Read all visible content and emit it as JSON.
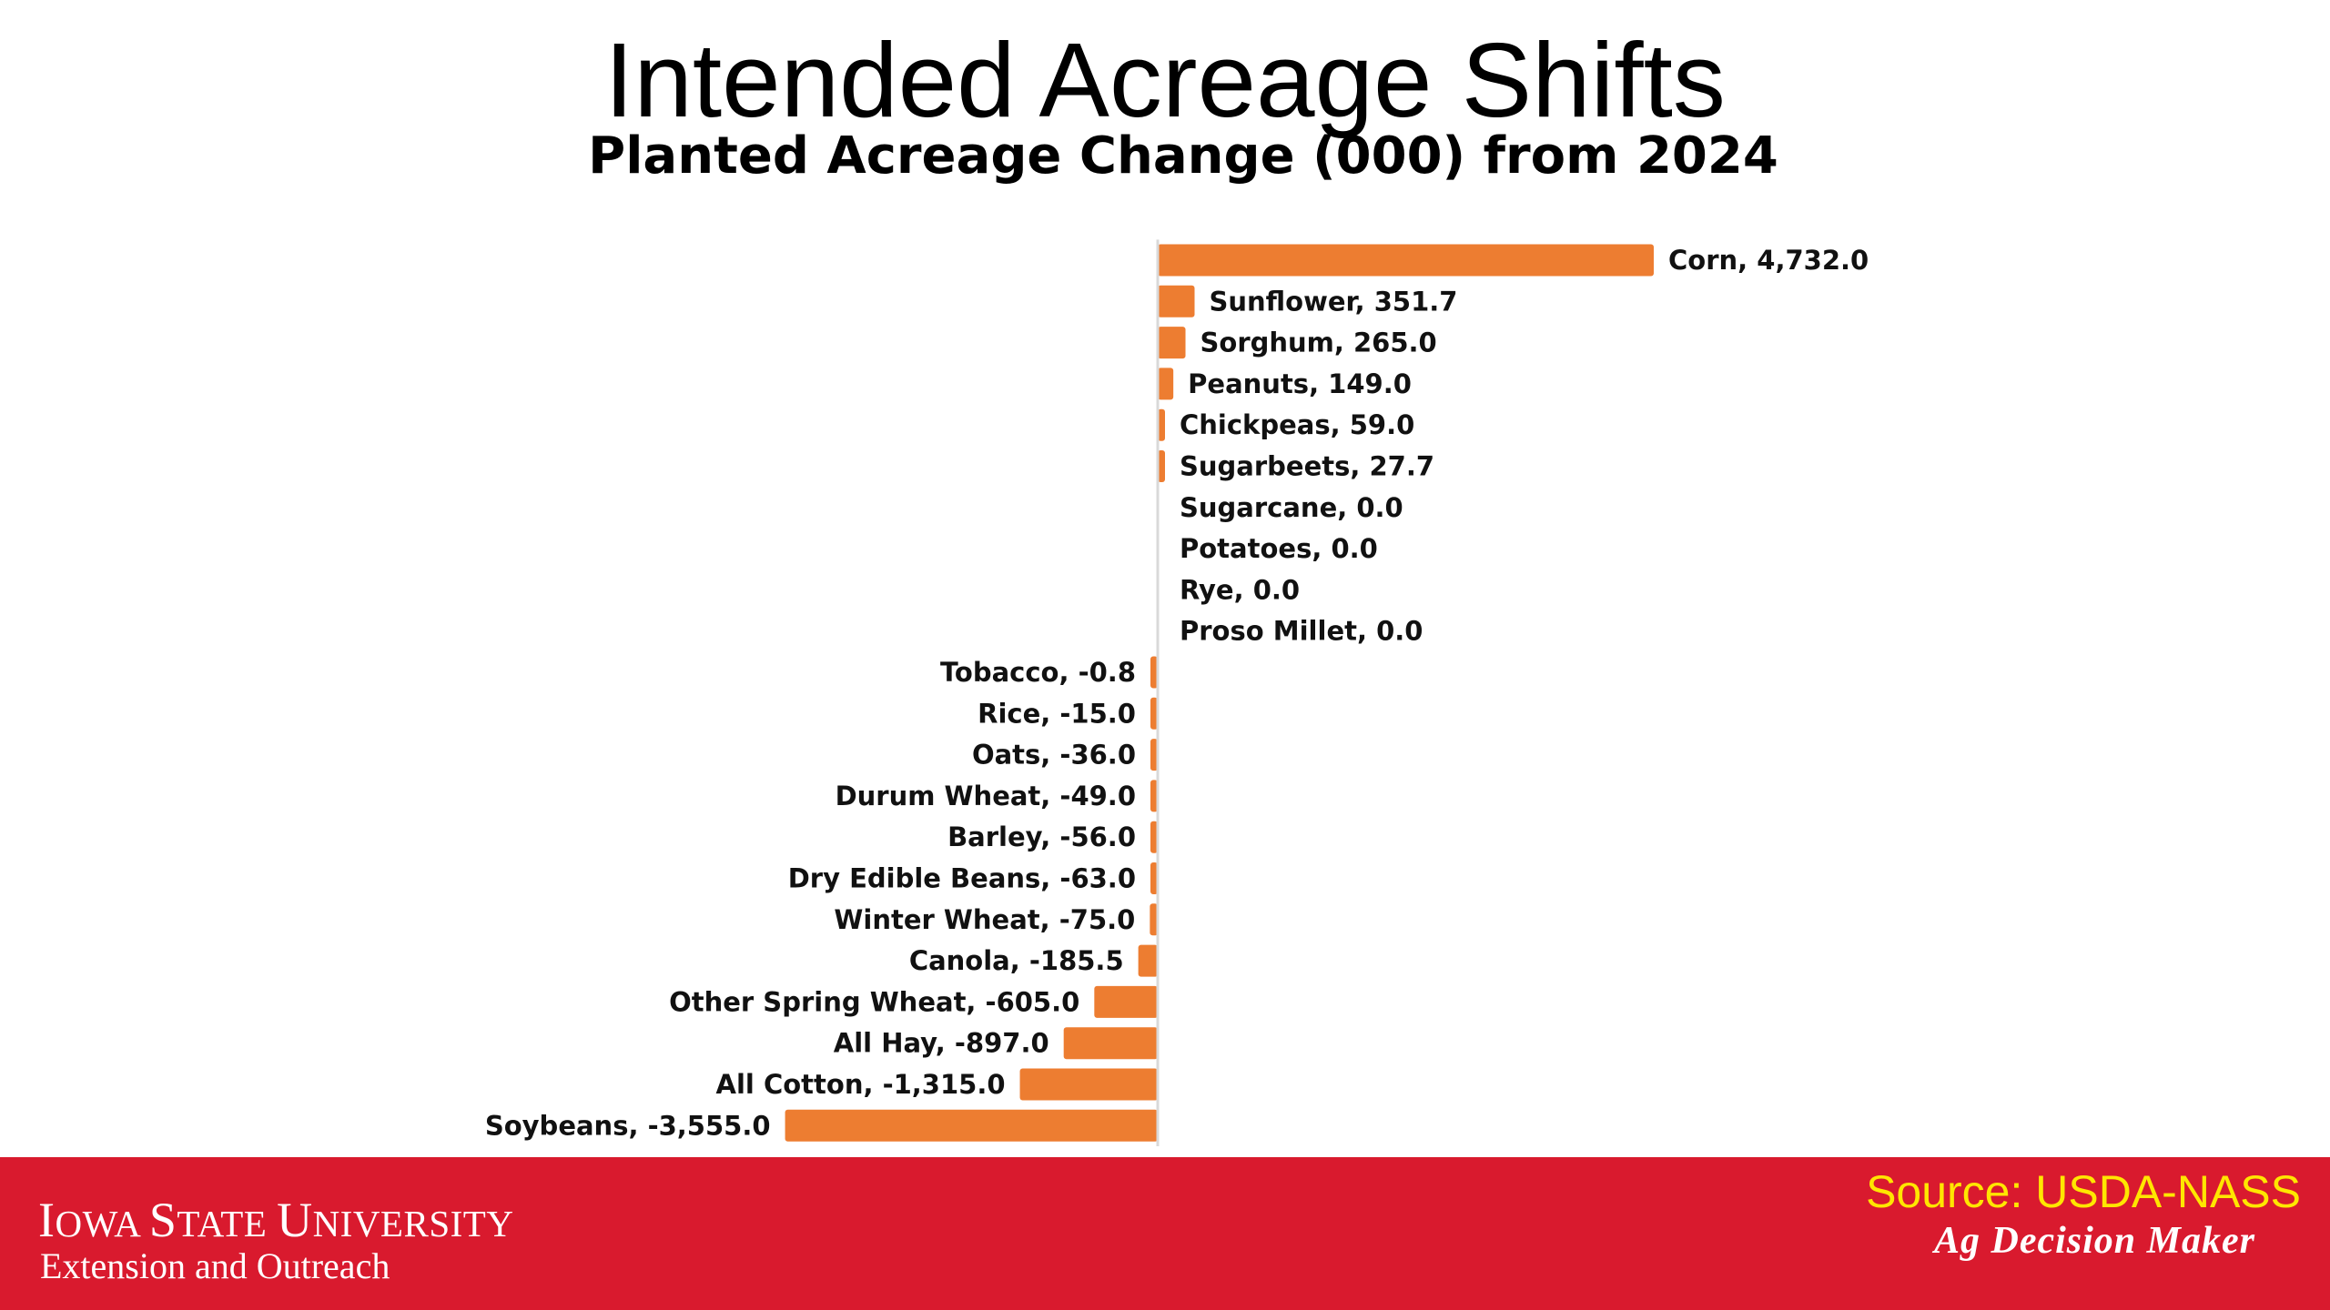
{
  "slide": {
    "title": "Intended Acreage Shifts"
  },
  "chart_data": {
    "type": "bar",
    "orientation": "horizontal",
    "title": "Planted Acreage Change (000) from 2024",
    "xlabel": "",
    "ylabel": "",
    "grid": false,
    "legend": "none",
    "bar_color": "#ed7d31",
    "categories": [
      "Corn",
      "Sunflower",
      "Sorghum",
      "Peanuts",
      "Chickpeas",
      "Sugarbeets",
      "Sugarcane",
      "Potatoes",
      "Rye",
      "Proso Millet",
      "Tobacco",
      "Rice",
      "Oats",
      "Durum Wheat",
      "Barley",
      "Dry Edible Beans",
      "Winter Wheat",
      "Canola",
      "Other Spring Wheat",
      "All Hay",
      "All Cotton",
      "Soybeans"
    ],
    "values": [
      4732.0,
      351.7,
      265.0,
      149.0,
      59.0,
      27.7,
      0.0,
      0.0,
      0.0,
      0.0,
      -0.8,
      -15.0,
      -36.0,
      -49.0,
      -56.0,
      -63.0,
      -75.0,
      -185.5,
      -605.0,
      -897.0,
      -1315.0,
      -3555.0
    ],
    "data_labels": [
      "Corn, 4,732.0",
      "Sunflower, 351.7",
      "Sorghum, 265.0",
      "Peanuts, 149.0",
      "Chickpeas, 59.0",
      "Sugarbeets, 27.7",
      "Sugarcane, 0.0",
      "Potatoes, 0.0",
      "Rye, 0.0",
      "Proso Millet, 0.0",
      "Tobacco, -0.8",
      "Rice, -15.0",
      "Oats, -36.0",
      "Durum Wheat, -49.0",
      "Barley, -56.0",
      "Dry Edible Beans, -63.0",
      "Winter Wheat, -75.0",
      "Canola, -185.5",
      "Other Spring Wheat, -605.0",
      "All Hay, -897.0",
      "All Cotton, -1,315.0",
      "Soybeans, -3,555.0"
    ]
  },
  "footer": {
    "university_name_parts": [
      "I",
      "OWA ",
      "S",
      "TATE ",
      "U",
      "NIVERSITY"
    ],
    "extension": "Extension and Outreach",
    "source": "Source: USDA-NASS",
    "brand": "Ag Decision Maker",
    "background_color": "#d91a2e",
    "source_color": "#ffe600"
  }
}
